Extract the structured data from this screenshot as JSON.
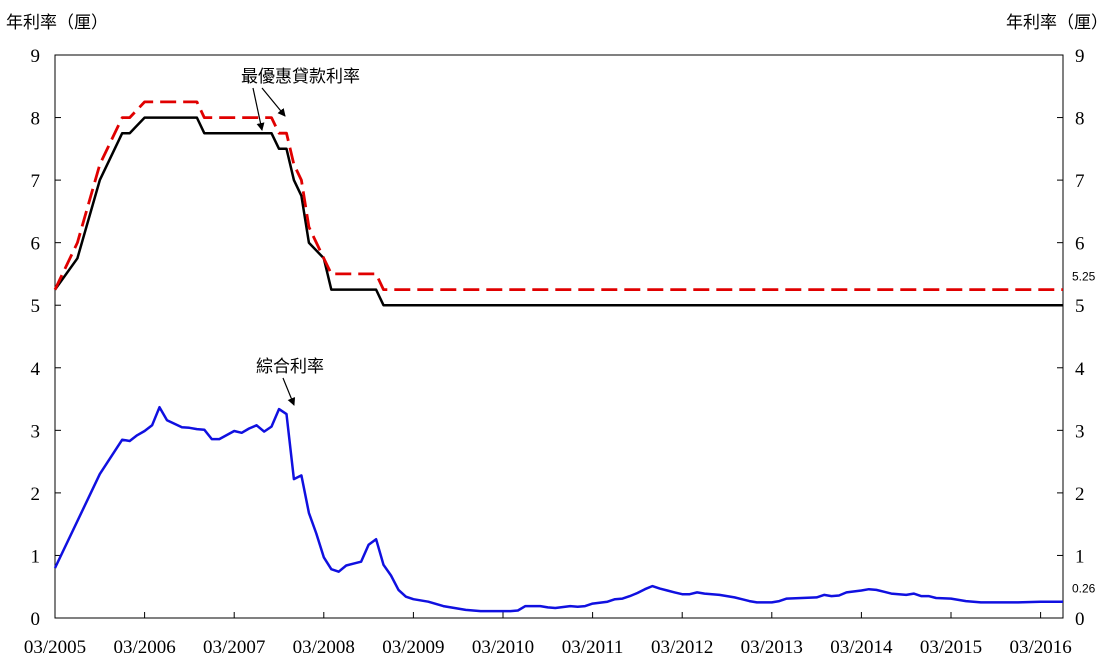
{
  "chart_data": {
    "type": "line",
    "ylabel_left": "年利率（厘）",
    "ylabel_right": "年利率（厘）",
    "ylim": [
      0,
      9
    ],
    "yticks": [
      "0",
      "1",
      "2",
      "3",
      "4",
      "5",
      "6",
      "7",
      "8",
      "9"
    ],
    "xticks": [
      "03/2005",
      "03/2006",
      "03/2007",
      "03/2008",
      "03/2009",
      "03/2010",
      "03/2011",
      "03/2012",
      "03/2013",
      "03/2014",
      "03/2015",
      "03/2016"
    ],
    "grid": false,
    "series": [
      {
        "name": "最優惠貸款利率",
        "style": "solid",
        "color": "#000000",
        "points": [
          [
            "03/2005",
            5.25
          ],
          [
            "06/2005",
            5.75
          ],
          [
            "09/2005",
            7.0
          ],
          [
            "12/2005",
            7.75
          ],
          [
            "01/2006",
            7.75
          ],
          [
            "03/2006",
            8.0
          ],
          [
            "10/2006",
            8.0
          ],
          [
            "11/2006",
            7.75
          ],
          [
            "08/2007",
            7.75
          ],
          [
            "09/2007",
            7.5
          ],
          [
            "10/2007",
            7.5
          ],
          [
            "11/2007",
            7.0
          ],
          [
            "12/2007",
            6.75
          ],
          [
            "01/2008",
            6.0
          ],
          [
            "03/2008",
            5.75
          ],
          [
            "04/2008",
            5.25
          ],
          [
            "10/2008",
            5.25
          ],
          [
            "11/2008",
            5.0
          ],
          [
            "06/2016",
            5.0
          ]
        ]
      },
      {
        "name": "最優惠貸款利率",
        "style": "dashed",
        "color": "#e00000",
        "points": [
          [
            "03/2005",
            5.25
          ],
          [
            "06/2005",
            6.0
          ],
          [
            "09/2005",
            7.25
          ],
          [
            "12/2005",
            8.0
          ],
          [
            "01/2006",
            8.0
          ],
          [
            "03/2006",
            8.25
          ],
          [
            "10/2006",
            8.25
          ],
          [
            "11/2006",
            8.0
          ],
          [
            "08/2007",
            8.0
          ],
          [
            "09/2007",
            7.75
          ],
          [
            "10/2007",
            7.75
          ],
          [
            "11/2007",
            7.25
          ],
          [
            "12/2007",
            7.0
          ],
          [
            "01/2008",
            6.25
          ],
          [
            "03/2008",
            5.75
          ],
          [
            "04/2008",
            5.5
          ],
          [
            "10/2008",
            5.5
          ],
          [
            "11/2008",
            5.25
          ],
          [
            "06/2016",
            5.25
          ]
        ],
        "end_label": "5.25"
      },
      {
        "name": "綜合利率",
        "style": "solid",
        "color": "#1010e0",
        "points": [
          [
            "03/2005",
            0.8
          ],
          [
            "09/2005",
            2.3
          ],
          [
            "12/2005",
            2.85
          ],
          [
            "01/2006",
            2.83
          ],
          [
            "02/2006",
            2.92
          ],
          [
            "03/2006",
            2.99
          ],
          [
            "04/2006",
            3.08
          ],
          [
            "05/2006",
            3.37
          ],
          [
            "06/2006",
            3.16
          ],
          [
            "08/2006",
            3.05
          ],
          [
            "09/2006",
            3.04
          ],
          [
            "10/2006",
            3.02
          ],
          [
            "11/2006",
            3.01
          ],
          [
            "12/2006",
            2.86
          ],
          [
            "01/2007",
            2.86
          ],
          [
            "03/2007",
            2.99
          ],
          [
            "04/2007",
            2.96
          ],
          [
            "05/2007",
            3.03
          ],
          [
            "06/2007",
            3.08
          ],
          [
            "07/2007",
            2.98
          ],
          [
            "08/2007",
            3.06
          ],
          [
            "09/2007",
            3.34
          ],
          [
            "10/2007",
            3.26
          ],
          [
            "11/2007",
            2.22
          ],
          [
            "12/2007",
            2.28
          ],
          [
            "01/2008",
            1.68
          ],
          [
            "02/2008",
            1.35
          ],
          [
            "03/2008",
            0.97
          ],
          [
            "04/2008",
            0.78
          ],
          [
            "05/2008",
            0.74
          ],
          [
            "06/2008",
            0.84
          ],
          [
            "07/2008",
            0.87
          ],
          [
            "08/2008",
            0.9
          ],
          [
            "09/2008",
            1.17
          ],
          [
            "10/2008",
            1.26
          ],
          [
            "11/2008",
            0.85
          ],
          [
            "12/2008",
            0.68
          ],
          [
            "01/2009",
            0.45
          ],
          [
            "02/2009",
            0.34
          ],
          [
            "03/2009",
            0.3
          ],
          [
            "05/2009",
            0.26
          ],
          [
            "07/2009",
            0.19
          ],
          [
            "10/2009",
            0.13
          ],
          [
            "12/2009",
            0.11
          ],
          [
            "04/2010",
            0.11
          ],
          [
            "05/2010",
            0.12
          ],
          [
            "06/2010",
            0.19
          ],
          [
            "08/2010",
            0.19
          ],
          [
            "09/2010",
            0.17
          ],
          [
            "10/2010",
            0.16
          ],
          [
            "12/2010",
            0.19
          ],
          [
            "01/2011",
            0.18
          ],
          [
            "02/2011",
            0.19
          ],
          [
            "03/2011",
            0.23
          ],
          [
            "05/2011",
            0.26
          ],
          [
            "06/2011",
            0.3
          ],
          [
            "07/2011",
            0.31
          ],
          [
            "08/2011",
            0.35
          ],
          [
            "09/2011",
            0.4
          ],
          [
            "10/2011",
            0.46
          ],
          [
            "11/2011",
            0.51
          ],
          [
            "12/2011",
            0.47
          ],
          [
            "01/2012",
            0.44
          ],
          [
            "02/2012",
            0.41
          ],
          [
            "03/2012",
            0.38
          ],
          [
            "04/2012",
            0.38
          ],
          [
            "05/2012",
            0.41
          ],
          [
            "06/2012",
            0.39
          ],
          [
            "08/2012",
            0.37
          ],
          [
            "10/2012",
            0.33
          ],
          [
            "11/2012",
            0.3
          ],
          [
            "12/2012",
            0.27
          ],
          [
            "01/2013",
            0.25
          ],
          [
            "03/2013",
            0.25
          ],
          [
            "04/2013",
            0.27
          ],
          [
            "05/2013",
            0.31
          ],
          [
            "07/2013",
            0.32
          ],
          [
            "09/2013",
            0.33
          ],
          [
            "10/2013",
            0.37
          ],
          [
            "11/2013",
            0.35
          ],
          [
            "12/2013",
            0.36
          ],
          [
            "01/2014",
            0.41
          ],
          [
            "03/2014",
            0.44
          ],
          [
            "04/2014",
            0.46
          ],
          [
            "05/2014",
            0.45
          ],
          [
            "06/2014",
            0.42
          ],
          [
            "07/2014",
            0.39
          ],
          [
            "09/2014",
            0.37
          ],
          [
            "10/2014",
            0.39
          ],
          [
            "11/2014",
            0.35
          ],
          [
            "12/2014",
            0.35
          ],
          [
            "01/2015",
            0.32
          ],
          [
            "03/2015",
            0.31
          ],
          [
            "05/2015",
            0.27
          ],
          [
            "07/2015",
            0.25
          ],
          [
            "10/2015",
            0.25
          ],
          [
            "12/2015",
            0.25
          ],
          [
            "03/2016",
            0.26
          ],
          [
            "06/2016",
            0.26
          ]
        ],
        "end_label": "0.26"
      }
    ],
    "annotations": [
      {
        "text": "最優惠貸款利率",
        "targets": [
          "最優惠貸款利率"
        ]
      },
      {
        "text": "綜合利率",
        "targets": [
          "綜合利率"
        ]
      }
    ]
  }
}
